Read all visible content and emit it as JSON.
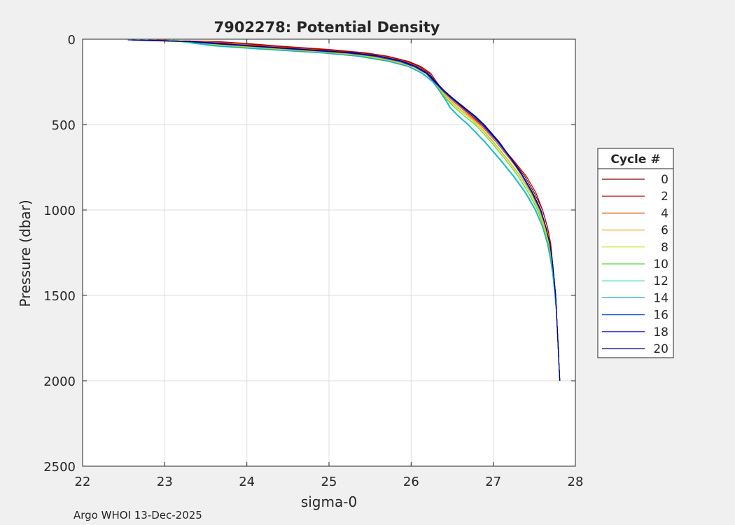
{
  "chart_data": {
    "type": "line",
    "title": "7902278: Potential Density",
    "xlabel": "sigma-0",
    "ylabel": "Pressure (dbar)",
    "xlim": [
      22,
      28
    ],
    "ylim": [
      0,
      2500
    ],
    "y_reversed": true,
    "x_ticks": [
      22,
      23,
      24,
      25,
      26,
      27,
      28
    ],
    "y_ticks": [
      0,
      500,
      1000,
      1500,
      2000,
      2500
    ],
    "grid": true,
    "legend": {
      "title": "Cycle #",
      "placement": "right",
      "entries": [
        "0",
        "2",
        "4",
        "6",
        "8",
        "10",
        "12",
        "14",
        "16",
        "18",
        "20"
      ]
    },
    "series": [
      {
        "name": "0",
        "color": "#800000",
        "p": [
          5,
          15,
          25,
          40,
          60,
          80,
          100,
          130,
          160,
          200,
          250,
          300,
          350,
          400,
          450,
          500,
          600,
          700,
          800,
          900,
          1000,
          1100,
          1200,
          1300,
          1400,
          1500,
          1600,
          1700,
          1800,
          1900,
          2000
        ],
        "sigma": [
          22.8,
          23.6,
          23.9,
          24.3,
          24.9,
          25.4,
          25.7,
          25.95,
          26.1,
          26.22,
          26.3,
          26.38,
          26.5,
          26.62,
          26.74,
          26.86,
          27.05,
          27.22,
          27.38,
          27.5,
          27.6,
          27.66,
          27.7,
          27.72,
          27.74,
          27.76,
          27.77,
          27.78,
          27.79,
          27.8,
          27.81
        ]
      },
      {
        "name": "2",
        "color": "#c00000",
        "p": [
          5,
          15,
          25,
          40,
          60,
          80,
          100,
          130,
          160,
          200,
          250,
          300,
          350,
          400,
          450,
          500,
          600,
          700,
          800,
          900,
          1000,
          1100,
          1200,
          1300,
          1400,
          1500,
          1600,
          1700,
          1800,
          1900,
          2000
        ],
        "sigma": [
          22.9,
          23.7,
          24.0,
          24.4,
          25.0,
          25.45,
          25.72,
          25.97,
          26.12,
          26.24,
          26.31,
          26.39,
          26.5,
          26.62,
          26.74,
          26.86,
          27.05,
          27.23,
          27.4,
          27.52,
          27.6,
          27.66,
          27.7,
          27.72,
          27.74,
          27.76,
          27.77,
          27.78,
          27.79,
          27.8,
          27.81
        ]
      },
      {
        "name": "4",
        "color": "#e0520a",
        "p": [
          5,
          15,
          25,
          40,
          60,
          80,
          100,
          130,
          160,
          200,
          250,
          300,
          350,
          400,
          450,
          500,
          600,
          700,
          800,
          900,
          1000,
          1100,
          1200,
          1300,
          1400,
          1500,
          1600,
          1700,
          1800,
          1900,
          2000
        ],
        "sigma": [
          23.0,
          23.5,
          23.85,
          24.2,
          24.8,
          25.3,
          25.65,
          25.92,
          26.08,
          26.2,
          26.29,
          26.38,
          26.48,
          26.6,
          26.72,
          26.84,
          27.03,
          27.2,
          27.36,
          27.48,
          27.58,
          27.64,
          27.69,
          27.72,
          27.74,
          27.76,
          27.77,
          27.78,
          27.79,
          27.8,
          27.81
        ]
      },
      {
        "name": "6",
        "color": "#f3a421",
        "p": [
          5,
          15,
          25,
          40,
          60,
          80,
          100,
          130,
          160,
          200,
          250,
          300,
          350,
          400,
          450,
          500,
          600,
          700,
          800,
          900,
          1000,
          1100,
          1200,
          1300,
          1400,
          1500,
          1600,
          1700,
          1800,
          1900,
          2000
        ],
        "sigma": [
          23.1,
          23.3,
          23.5,
          23.9,
          24.5,
          25.1,
          25.5,
          25.8,
          26.0,
          26.15,
          26.27,
          26.37,
          26.46,
          26.57,
          26.7,
          26.82,
          27.0,
          27.17,
          27.33,
          27.46,
          27.56,
          27.63,
          27.68,
          27.71,
          27.74,
          27.75,
          27.77,
          27.78,
          27.79,
          27.8,
          27.81
        ]
      },
      {
        "name": "8",
        "color": "#c8e61e",
        "p": [
          5,
          15,
          25,
          40,
          60,
          80,
          100,
          130,
          160,
          200,
          250,
          300,
          350,
          400,
          450,
          500,
          600,
          700,
          800,
          900,
          1000,
          1100,
          1200,
          1300,
          1400,
          1500,
          1600,
          1700,
          1800,
          1900,
          2000
        ],
        "sigma": [
          23.15,
          23.3,
          23.45,
          23.8,
          24.4,
          25.0,
          25.45,
          25.78,
          25.99,
          26.15,
          26.27,
          26.36,
          26.44,
          26.55,
          26.68,
          26.8,
          26.99,
          27.16,
          27.32,
          27.45,
          27.55,
          27.62,
          27.68,
          27.71,
          27.73,
          27.75,
          27.77,
          27.78,
          27.79,
          27.8,
          27.81
        ]
      },
      {
        "name": "10",
        "color": "#4cd933",
        "p": [
          5,
          15,
          25,
          40,
          60,
          80,
          100,
          130,
          160,
          200,
          250,
          300,
          350,
          400,
          450,
          500,
          600,
          700,
          800,
          900,
          1000,
          1100,
          1200,
          1300,
          1400,
          1500,
          1600,
          1700,
          1800,
          1900,
          2000
        ],
        "sigma": [
          23.1,
          23.25,
          23.4,
          23.7,
          24.3,
          24.95,
          25.4,
          25.75,
          25.97,
          26.14,
          26.26,
          26.35,
          26.43,
          26.53,
          26.65,
          26.78,
          26.97,
          27.14,
          27.3,
          27.43,
          27.54,
          27.61,
          27.67,
          27.71,
          27.73,
          27.75,
          27.77,
          27.78,
          27.79,
          27.8,
          27.81
        ]
      },
      {
        "name": "12",
        "color": "#21dfa6",
        "p": [
          5,
          15,
          25,
          40,
          60,
          80,
          100,
          130,
          160,
          200,
          250,
          300,
          350,
          400,
          450,
          500,
          600,
          700,
          800,
          900,
          1000,
          1100,
          1200,
          1300,
          1400,
          1500,
          1600,
          1700,
          1800,
          1900,
          2000
        ],
        "sigma": [
          23.05,
          23.2,
          23.35,
          23.6,
          24.2,
          24.9,
          25.35,
          25.72,
          25.96,
          26.13,
          26.26,
          26.34,
          26.42,
          26.48,
          26.58,
          26.7,
          26.9,
          27.08,
          27.25,
          27.4,
          27.52,
          27.6,
          27.66,
          27.7,
          27.73,
          27.75,
          27.77,
          27.78,
          27.79,
          27.8,
          27.81
        ]
      },
      {
        "name": "14",
        "color": "#1aa7d9",
        "p": [
          5,
          15,
          25,
          40,
          60,
          80,
          100,
          130,
          160,
          200,
          250,
          300,
          350,
          400,
          450,
          500,
          600,
          700,
          800,
          900,
          1000,
          1100,
          1200,
          1300,
          1400,
          1500,
          1600,
          1700,
          1800,
          1900,
          2000
        ],
        "sigma": [
          23.3,
          23.3,
          23.4,
          23.65,
          24.25,
          24.9,
          25.35,
          25.73,
          25.97,
          26.14,
          26.27,
          26.34,
          26.41,
          26.47,
          26.57,
          26.69,
          26.89,
          27.07,
          27.24,
          27.39,
          27.51,
          27.6,
          27.66,
          27.7,
          27.73,
          27.75,
          27.77,
          27.78,
          27.79,
          27.8,
          27.81
        ]
      },
      {
        "name": "16",
        "color": "#0b4ee6",
        "p": [
          5,
          15,
          25,
          40,
          60,
          80,
          100,
          130,
          160,
          200,
          250,
          300,
          350,
          400,
          450,
          500,
          600,
          700,
          800,
          900,
          1000,
          1100,
          1200,
          1300,
          1400,
          1500,
          1600,
          1700,
          1800,
          1900,
          2000
        ],
        "sigma": [
          22.55,
          23.3,
          23.55,
          24.0,
          24.6,
          25.2,
          25.55,
          25.85,
          26.03,
          26.18,
          26.28,
          26.38,
          26.5,
          26.63,
          26.76,
          26.87,
          27.05,
          27.21,
          27.35,
          27.47,
          27.57,
          27.64,
          27.69,
          27.72,
          27.74,
          27.76,
          27.77,
          27.78,
          27.79,
          27.8,
          27.81
        ]
      },
      {
        "name": "18",
        "color": "#0000c8",
        "p": [
          5,
          15,
          25,
          40,
          60,
          80,
          100,
          130,
          160,
          200,
          250,
          300,
          350,
          400,
          450,
          500,
          600,
          700,
          800,
          900,
          1000,
          1100,
          1200,
          1300,
          1400,
          1500,
          1600,
          1700,
          1800,
          1900,
          2000
        ],
        "sigma": [
          22.7,
          23.35,
          23.6,
          24.05,
          24.65,
          25.25,
          25.6,
          25.88,
          26.05,
          26.19,
          26.29,
          26.39,
          26.51,
          26.64,
          26.77,
          26.88,
          27.06,
          27.22,
          27.36,
          27.48,
          27.58,
          27.64,
          27.69,
          27.72,
          27.74,
          27.76,
          27.77,
          27.78,
          27.79,
          27.8,
          27.81
        ]
      },
      {
        "name": "20",
        "color": "#000080",
        "p": [
          5,
          15,
          25,
          40,
          60,
          80,
          100,
          130,
          160,
          200,
          250,
          300,
          350,
          400,
          450,
          500,
          600,
          700,
          800,
          900,
          1000,
          1100,
          1200,
          1300,
          1400,
          1500,
          1600,
          1700,
          1800,
          1900,
          2000
        ],
        "sigma": [
          22.6,
          23.4,
          23.7,
          24.1,
          24.7,
          25.3,
          25.62,
          25.9,
          26.06,
          26.2,
          26.3,
          26.4,
          26.52,
          26.65,
          26.78,
          26.89,
          27.07,
          27.22,
          27.36,
          27.48,
          27.58,
          27.64,
          27.69,
          27.72,
          27.74,
          27.76,
          27.77,
          27.78,
          27.79,
          27.8,
          27.81
        ]
      }
    ]
  },
  "footer": {
    "text": "Argo WHOI 13-Dec-2025"
  }
}
